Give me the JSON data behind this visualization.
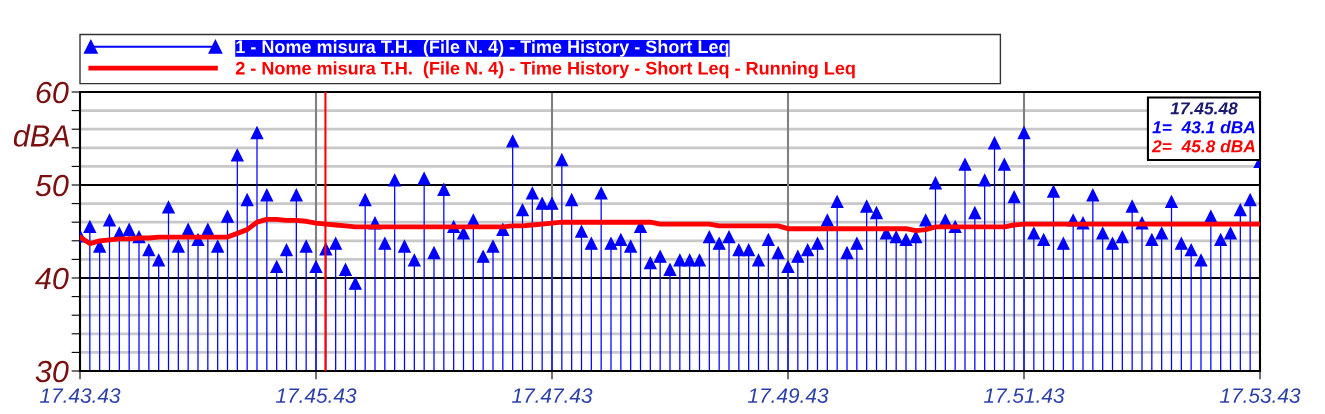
{
  "chart_data": {
    "type": "line",
    "ylabel": "dBA",
    "categories": [
      "17.43.43",
      null,
      null,
      null,
      null,
      null,
      null,
      null,
      null,
      null,
      null,
      null,
      null,
      null,
      null,
      null,
      null,
      null,
      null,
      null,
      null,
      null,
      null,
      null,
      "17.45.43",
      null,
      null,
      null,
      null,
      null,
      null,
      null,
      null,
      null,
      null,
      null,
      null,
      null,
      null,
      null,
      null,
      null,
      null,
      null,
      null,
      null,
      null,
      null,
      "17.47.43",
      null,
      null,
      null,
      null,
      null,
      null,
      null,
      null,
      null,
      null,
      null,
      null,
      null,
      null,
      null,
      null,
      null,
      null,
      null,
      null,
      null,
      null,
      null,
      "17.49.43",
      null,
      null,
      null,
      null,
      null,
      null,
      null,
      null,
      null,
      null,
      null,
      null,
      null,
      null,
      null,
      null,
      null,
      null,
      null,
      null,
      null,
      null,
      null,
      "17.51.43",
      null,
      null,
      null,
      null,
      null,
      null,
      null,
      null,
      null,
      null,
      null,
      null,
      null,
      null,
      null,
      null,
      null,
      null,
      null,
      null,
      null,
      null,
      null,
      "17.53.43"
    ],
    "ylim": [
      30,
      60
    ],
    "yticks": [
      30,
      {
        "value": 32,
        "label": null
      },
      {
        "value": 34,
        "label": null
      },
      {
        "value": 36,
        "label": null
      },
      {
        "value": 38,
        "label": null
      },
      40,
      {
        "value": 42,
        "label": null
      },
      {
        "value": 44,
        "label": null
      },
      {
        "value": 46,
        "label": null
      },
      {
        "value": 48,
        "label": null
      },
      50,
      {
        "value": 52,
        "label": null
      },
      {
        "value": 54,
        "label": null
      },
      {
        "value": 56,
        "label": null
      },
      {
        "value": 58,
        "label": null
      },
      60
    ],
    "grid": true,
    "legend": "top",
    "annotations": [
      "17.45.48",
      "1=  43.1 dBA",
      "2=  45.8 dBA"
    ],
    "series": [
      {
        "name": "1 - Nome misura T.H.  (File N. 4) - Time History - Short Leq",
        "type": "lollipop",
        "marker": "triangle",
        "color": "#0000ff",
        "values": [
          44.5,
          45.5,
          43.4,
          46.2,
          44.8,
          45.2,
          44.4,
          43.0,
          41.9,
          47.6,
          43.4,
          45.2,
          44.1,
          45.2,
          43.4,
          46.6,
          53.2,
          48.4,
          55.6,
          48.9,
          41.2,
          43.0,
          48.9,
          43.4,
          41.2,
          43.1,
          43.7,
          40.9,
          39.4,
          48.4,
          45.9,
          43.7,
          50.5,
          43.4,
          41.9,
          50.7,
          42.7,
          49.5,
          45.5,
          44.8,
          46.2,
          42.3,
          43.4,
          45.2,
          54.7,
          47.3,
          49.1,
          48.0,
          48.0,
          52.7,
          48.4,
          45.0,
          43.7,
          49.1,
          43.7,
          44.1,
          43.4,
          45.5,
          41.6,
          42.3,
          40.9,
          41.9,
          41.9,
          41.9,
          44.4,
          43.7,
          44.4,
          43.0,
          43.0,
          41.9,
          44.1,
          42.7,
          41.2,
          42.3,
          43.0,
          43.7,
          46.2,
          48.2,
          42.7,
          43.7,
          47.7,
          47.0,
          44.8,
          44.4,
          44.1,
          44.4,
          46.2,
          50.2,
          46.2,
          45.5,
          52.2,
          47.0,
          50.5,
          54.5,
          52.2,
          48.7,
          55.6,
          44.8,
          44.1,
          49.3,
          43.7,
          46.2,
          45.9,
          48.9,
          44.8,
          43.7,
          44.4,
          47.7,
          45.9,
          44.1,
          44.8,
          48.2,
          43.7,
          43.0,
          41.9,
          46.6,
          44.1,
          44.8,
          47.3,
          48.4,
          52.5
        ]
      },
      {
        "name": "2 - Nome misura T.H.  (File N. 4) - Time History - Short Leq - Running Leq",
        "marker": "none",
        "line_style": "solid",
        "color": "#ff0000",
        "values": [
          44.4,
          43.7,
          44.0,
          44.1,
          44.2,
          44.2,
          44.3,
          44.3,
          44.4,
          44.4,
          44.4,
          44.4,
          44.4,
          44.4,
          44.4,
          44.4,
          44.8,
          45.2,
          46.0,
          46.3,
          46.3,
          46.2,
          46.2,
          46.1,
          45.9,
          45.8,
          45.7,
          45.6,
          45.5,
          45.5,
          45.5,
          45.5,
          45.5,
          45.5,
          45.5,
          45.5,
          45.5,
          45.5,
          45.5,
          45.5,
          45.5,
          45.5,
          45.5,
          45.5,
          45.6,
          45.6,
          45.7,
          45.8,
          45.9,
          46.0,
          46.0,
          46.0,
          46.0,
          46.0,
          46.0,
          46.0,
          46.0,
          46.0,
          46.0,
          45.8,
          45.8,
          45.8,
          45.8,
          45.8,
          45.8,
          45.6,
          45.6,
          45.6,
          45.6,
          45.6,
          45.6,
          45.6,
          45.3,
          45.3,
          45.3,
          45.3,
          45.3,
          45.3,
          45.3,
          45.3,
          45.3,
          45.3,
          45.3,
          45.3,
          45.3,
          45.1,
          45.2,
          45.5,
          45.5,
          45.5,
          45.5,
          45.5,
          45.5,
          45.5,
          45.5,
          45.7,
          45.8,
          45.8,
          45.8,
          45.8,
          45.8,
          45.8,
          45.8,
          45.8,
          45.8,
          45.8,
          45.8,
          45.8,
          45.8,
          45.8,
          45.8,
          45.8,
          45.8,
          45.8,
          45.8,
          45.8,
          45.8,
          45.8,
          45.8,
          45.8,
          45.8
        ]
      }
    ]
  }
}
